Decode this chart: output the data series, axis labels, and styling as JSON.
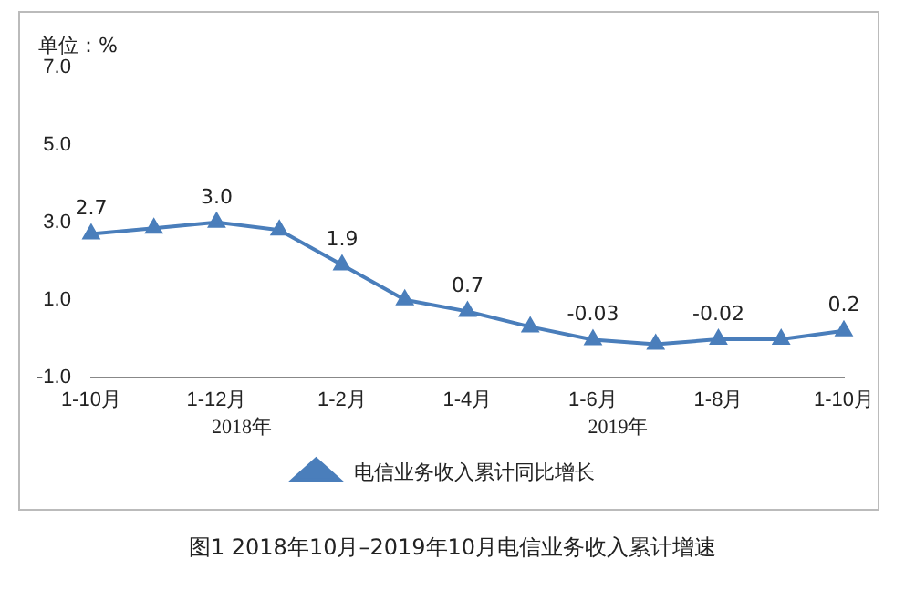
{
  "chart_data": {
    "type": "line",
    "title": "图1  2018年10月–2019年10月电信业务收入累计增速",
    "ylabel": "单位：%",
    "categories": [
      "1-10月",
      null,
      "1-12月",
      null,
      "1-2月",
      null,
      "1-4月",
      null,
      "1-6月",
      null,
      "1-8月",
      null,
      "1-10月"
    ],
    "series": [
      {
        "name": "电信业务收入累计同比增长",
        "color": "#4a7ebb",
        "values": [
          2.7,
          2.85,
          3.0,
          2.8,
          1.9,
          1.0,
          0.7,
          0.3,
          -0.03,
          -0.15,
          -0.02,
          -0.02,
          0.2
        ],
        "value_labels": [
          "2.7",
          null,
          "3.0",
          null,
          "1.9",
          null,
          "0.7",
          null,
          "-0.03",
          null,
          "-0.02",
          null,
          "0.2"
        ]
      }
    ],
    "ylim": [
      -1.0,
      7.0
    ],
    "yticks": [
      {
        "value": -1,
        "label": "-1.0"
      },
      {
        "value": 1,
        "label": "1.0"
      },
      {
        "value": 3,
        "label": "3.0"
      },
      {
        "value": 5,
        "label": "5.0"
      },
      {
        "value": 7,
        "label": "7.0"
      }
    ],
    "annotations": [
      "2018年",
      "2019年"
    ],
    "grid": false,
    "legend": "bottom",
    "marker": "triangle",
    "line_style": "solid"
  }
}
